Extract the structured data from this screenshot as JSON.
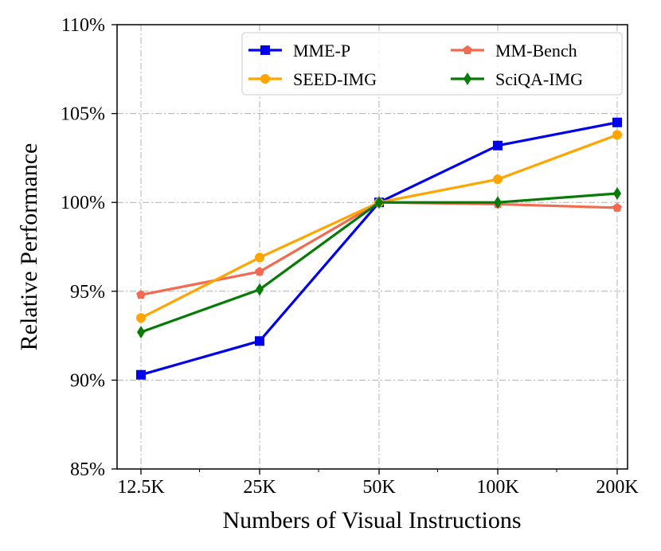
{
  "chart_data": {
    "type": "line",
    "xlabel": "Numbers of Visual Instructions",
    "ylabel": "Relative Performance",
    "categories": [
      "12.5K",
      "25K",
      "50K",
      "100K",
      "200K"
    ],
    "ylim": [
      85,
      110
    ],
    "yticks": [
      85,
      90,
      95,
      100,
      105,
      110
    ],
    "ytick_labels": [
      "85%",
      "90%",
      "95%",
      "100%",
      "105%",
      "110%"
    ],
    "grid": true,
    "legend_position": "top-right",
    "series": [
      {
        "name": "MME-P",
        "color": "#0000ee",
        "marker": "square",
        "values": [
          90.3,
          92.2,
          100.0,
          103.2,
          104.5
        ]
      },
      {
        "name": "MM-Bench",
        "color": "#f26b50",
        "marker": "pentagon",
        "values": [
          94.8,
          96.1,
          100.0,
          99.9,
          99.7
        ]
      },
      {
        "name": "SEED-IMG",
        "color": "#ffa500",
        "marker": "circle",
        "values": [
          93.5,
          96.9,
          100.0,
          101.3,
          103.8
        ]
      },
      {
        "name": "SciQA-IMG",
        "color": "#077a07",
        "marker": "diamond",
        "values": [
          92.7,
          95.1,
          100.0,
          100.0,
          100.5
        ]
      }
    ]
  }
}
